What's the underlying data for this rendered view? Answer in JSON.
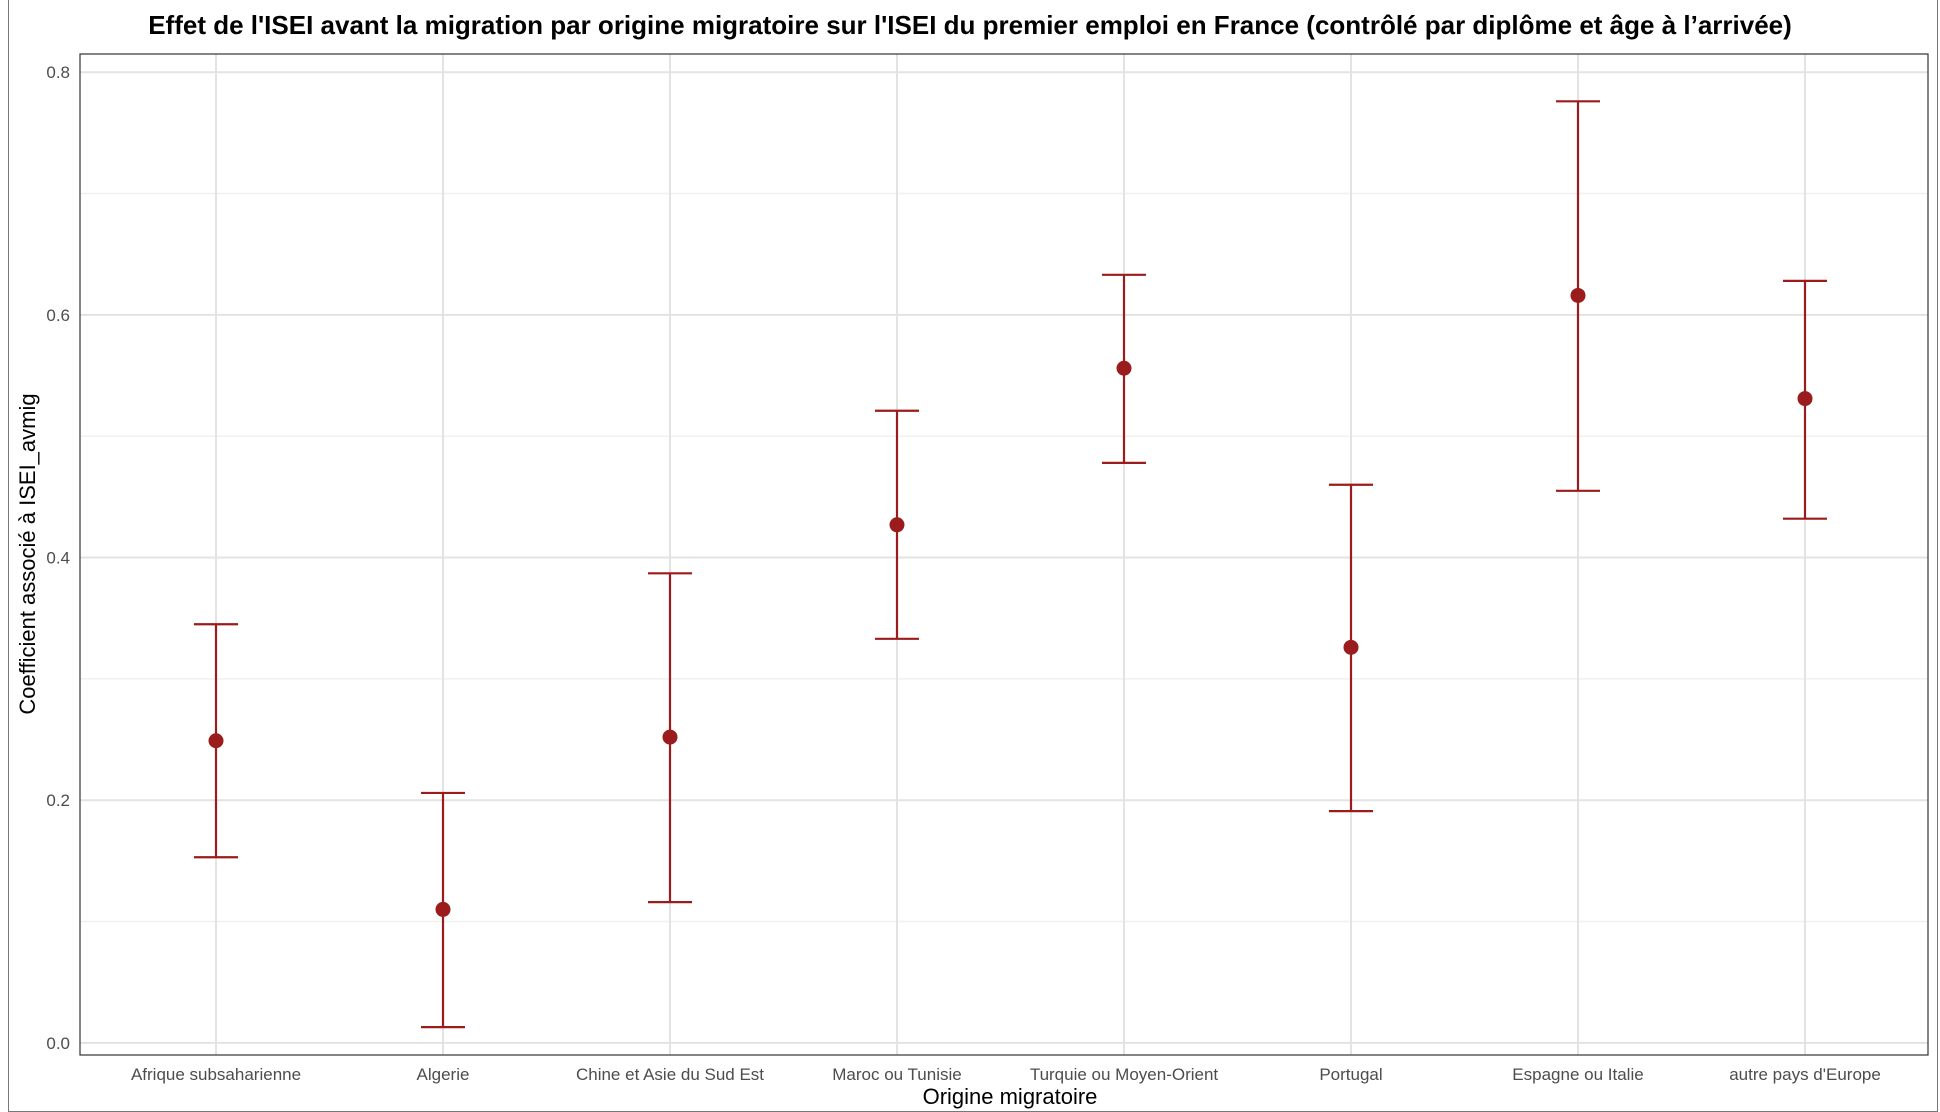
{
  "chart_data": {
    "type": "scatter",
    "subtype": "point-with-error-bars",
    "title": "Effet de l'ISEI avant la migration par origine migratoire sur l'ISEI du premier emploi en France (contrôlé par diplôme et âge à l’arrivée)",
    "xlabel": "Origine migratoire",
    "ylabel": "Coefficient associé à ISEI_avmig",
    "categories": [
      "Afrique subsaharienne",
      "Algerie",
      "Chine et Asie du Sud Est",
      "Maroc ou Tunisie",
      "Turquie ou Moyen-Orient",
      "Portugal",
      "Espagne ou Italie",
      "autre pays d'Europe"
    ],
    "estimates": [
      0.249,
      0.11,
      0.252,
      0.427,
      0.556,
      0.326,
      0.616,
      0.531
    ],
    "lower": [
      0.153,
      0.013,
      0.116,
      0.333,
      0.478,
      0.191,
      0.455,
      0.432
    ],
    "upper": [
      0.345,
      0.206,
      0.387,
      0.521,
      0.633,
      0.46,
      0.776,
      0.628
    ],
    "ylim": [
      -0.01,
      0.815
    ],
    "yticks": [
      0.0,
      0.2,
      0.4,
      0.6,
      0.8
    ],
    "ytick_labels": [
      "0.0",
      "0.2",
      "0.4",
      "0.6",
      "0.8"
    ],
    "grid": true,
    "legend": "none",
    "color": "#9b1c1c"
  }
}
